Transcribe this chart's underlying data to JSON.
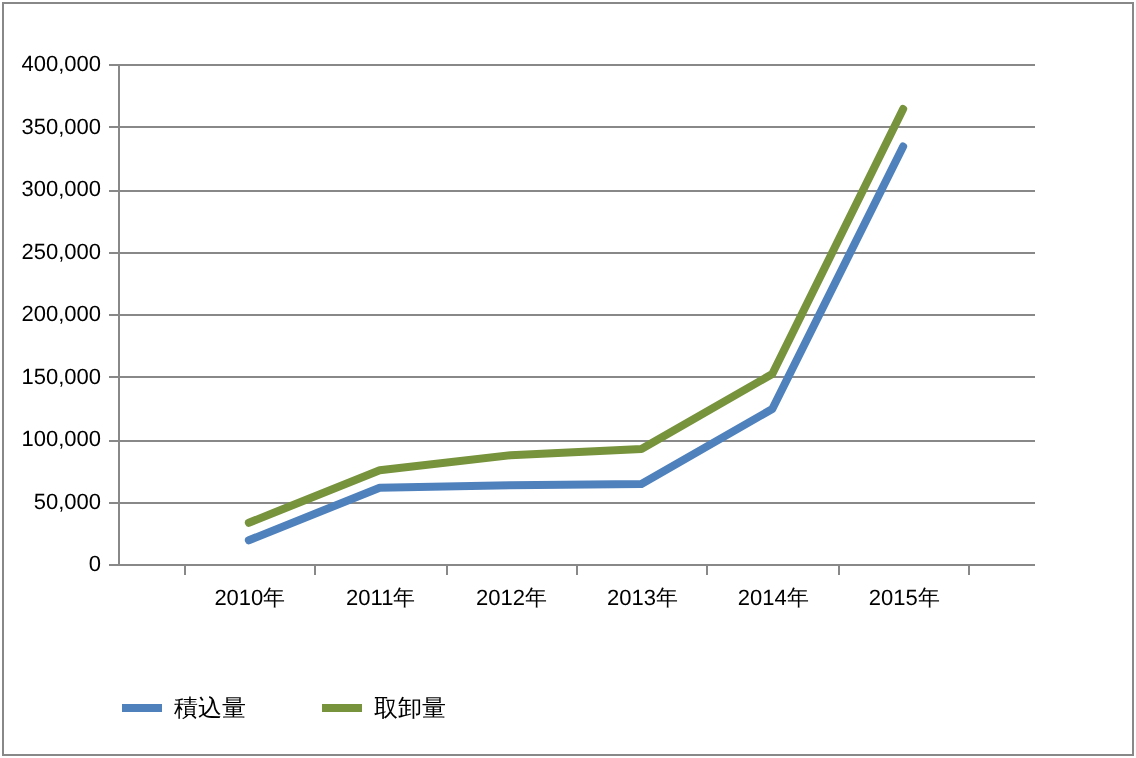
{
  "chart_data": {
    "type": "line",
    "categories": [
      "2010年",
      "2011年",
      "2012年",
      "2013年",
      "2014年",
      "2015年"
    ],
    "series": [
      {
        "name": "積込量",
        "color": "#4f81bd",
        "values": [
          19000,
          61000,
          63000,
          64000,
          124000,
          334000
        ]
      },
      {
        "name": "取卸量",
        "color": "#77933c",
        "values": [
          33000,
          75000,
          87000,
          92000,
          152000,
          364000
        ]
      }
    ],
    "ylim": [
      0,
      400000
    ],
    "yticks": [
      {
        "value": 0,
        "label": "0"
      },
      {
        "value": 50000,
        "label": "50,000"
      },
      {
        "value": 100000,
        "label": "100,000"
      },
      {
        "value": 150000,
        "label": "150,000"
      },
      {
        "value": 200000,
        "label": "200,000"
      },
      {
        "value": 250000,
        "label": "250,000"
      },
      {
        "value": 300000,
        "label": "300,000"
      },
      {
        "value": 350000,
        "label": "350,000"
      },
      {
        "value": 400000,
        "label": "400,000"
      }
    ],
    "grid": "y",
    "legend": "bottom",
    "marker": "none",
    "line_style": "solid"
  }
}
